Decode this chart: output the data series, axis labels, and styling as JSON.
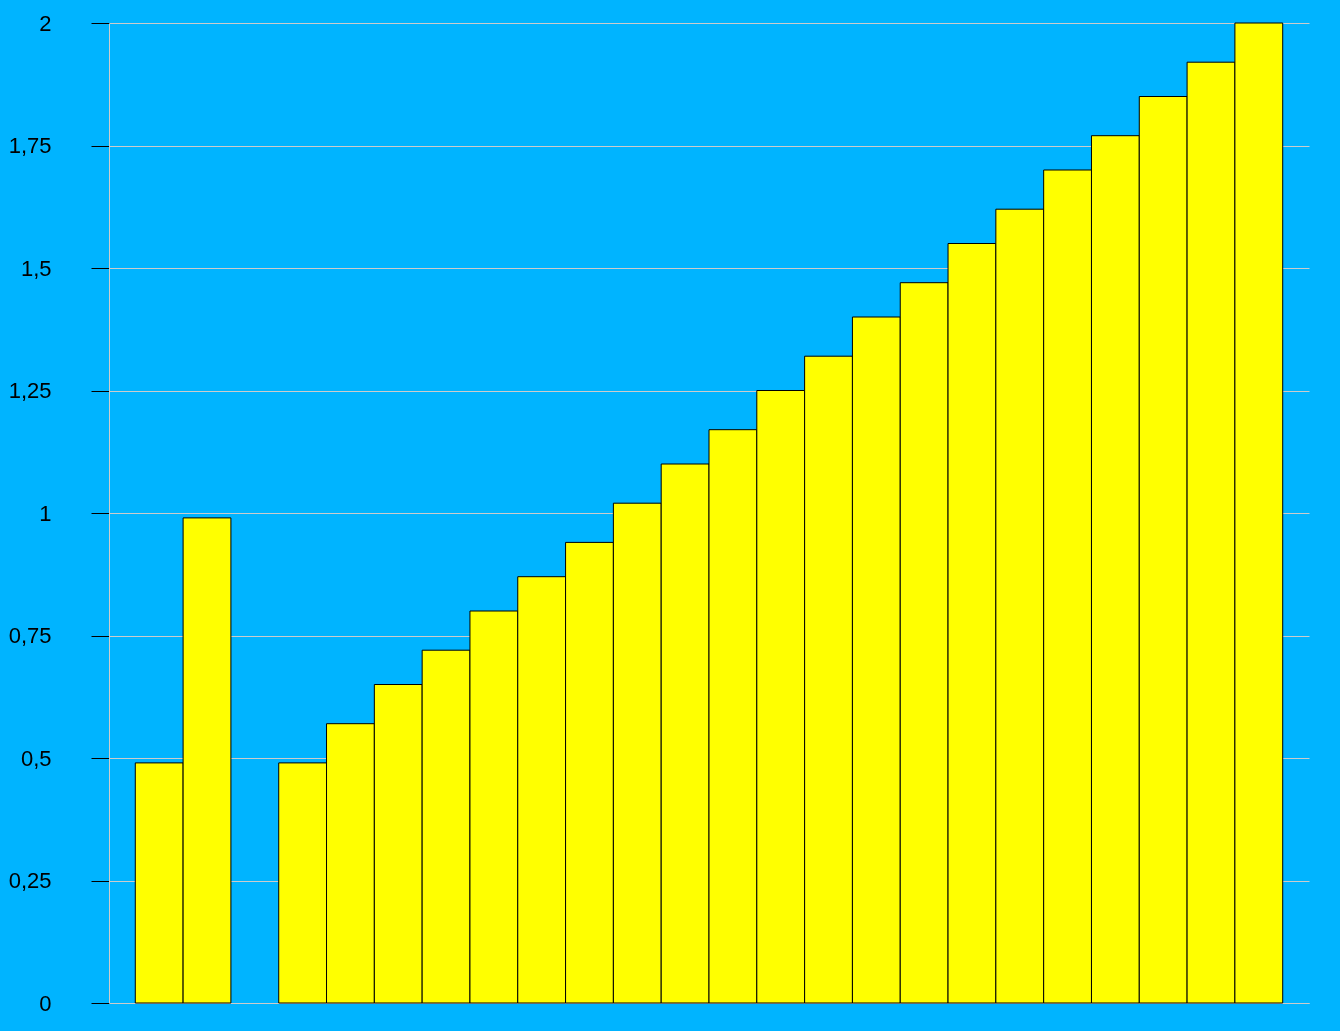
{
  "chart_data": {
    "type": "bar",
    "categories": [
      null,
      null,
      null,
      null,
      null,
      null,
      null,
      null,
      null,
      null,
      null,
      null,
      null,
      null,
      null,
      null,
      null,
      null,
      null,
      null,
      null,
      null,
      null,
      null
    ],
    "values": [
      0.49,
      0.99,
      null,
      0.49,
      0.57,
      0.65,
      0.72,
      0.8,
      0.87,
      0.94,
      1.02,
      1.1,
      1.17,
      1.25,
      1.32,
      1.4,
      1.47,
      1.55,
      1.62,
      1.7,
      1.77,
      1.85,
      1.92,
      2.0
    ],
    "color": "#ffff00",
    "ylim": [
      0,
      2
    ],
    "yticks": [
      0,
      {
        "value": 0.25,
        "label": "0,25"
      },
      {
        "value": 0.5,
        "label": "0,5"
      },
      {
        "value": 0.75,
        "label": "0,75"
      },
      1,
      {
        "value": 1.25,
        "label": "1,25"
      },
      {
        "value": 1.5,
        "label": "1,5"
      },
      {
        "value": 1.75,
        "label": "1,75"
      },
      2
    ],
    "grid": "y",
    "tick_labels": "y"
  }
}
